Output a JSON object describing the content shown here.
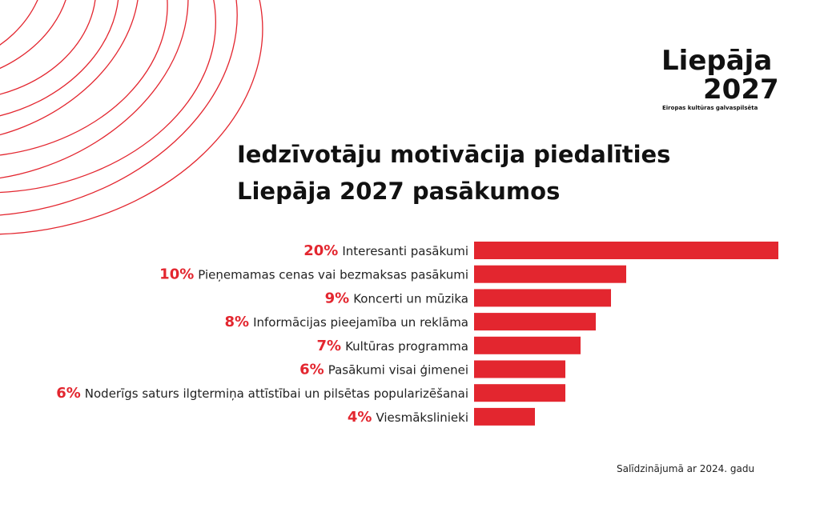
{
  "chart_data": {
    "type": "bar",
    "orientation": "horizontal",
    "title": "Iedzīvotāju motivācija piedalīties Liepāja 2027 pasākumos",
    "categories": [
      "Interesanti pasākumi",
      "Pieņemamas cenas vai bezmaksas pasākumi",
      "Koncerti un mūzika",
      "Informācijas pieejamība un reklāma",
      "Kultūras programma",
      "Pasākumi visai ģimenei",
      "Noderīgs saturs ilgtermiņa attīstībai un pilsētas popularizēšanai",
      "Viesmākslinieki"
    ],
    "values": [
      20,
      10,
      9,
      8,
      7,
      6,
      6,
      4
    ],
    "value_labels": [
      "20%",
      "10%",
      "9%",
      "8%",
      "7%",
      "6%",
      "6%",
      "4%"
    ],
    "color": "#e3262f",
    "note": "Salīdzinājumā ar 2024. gadu"
  },
  "logo": {
    "name": "Liepāja",
    "year": "2027",
    "tagline": "Eiropas kultūras galvaspilsēta"
  }
}
